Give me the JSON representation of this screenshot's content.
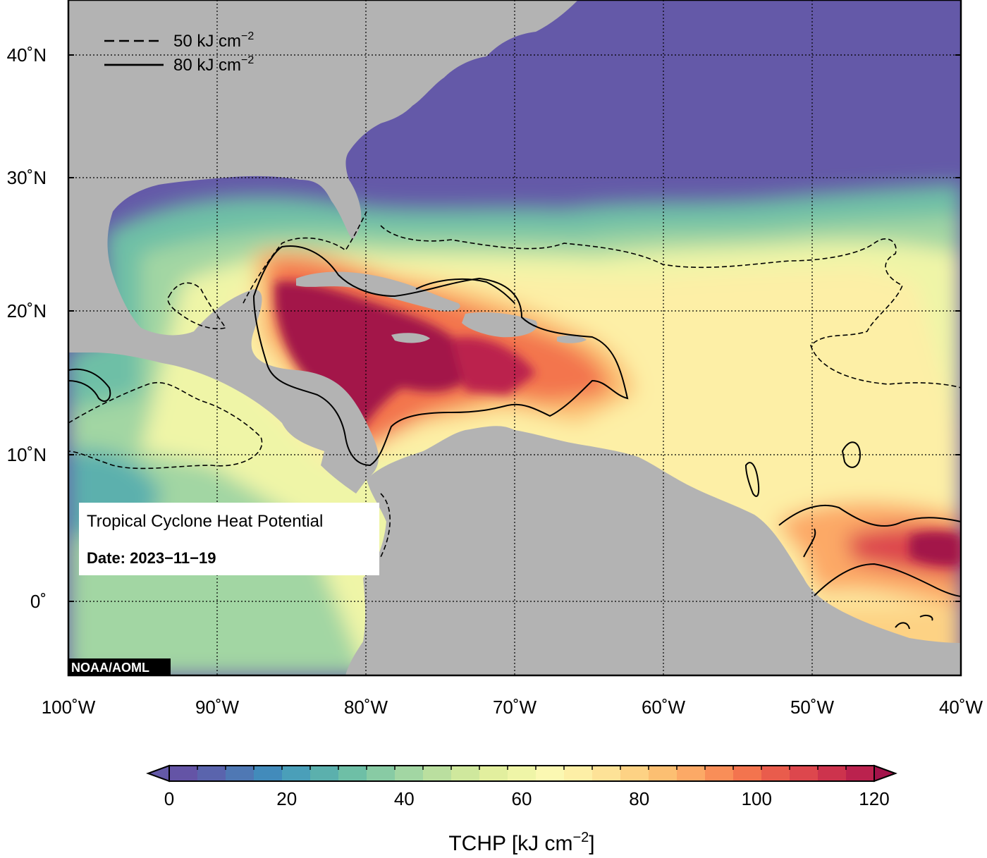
{
  "map": {
    "axes": {
      "lat_labels": [
        "40˚N",
        "30˚N",
        "20˚N",
        "10˚N",
        "0˚"
      ],
      "lon_labels": [
        "100˚W",
        "90˚W",
        "80˚W",
        "70˚W",
        "60˚W",
        "50˚W",
        "40˚W"
      ],
      "lon_range": [
        -100,
        -40
      ],
      "lat_range": [
        -5,
        45
      ],
      "grid": "dotted"
    },
    "legend": {
      "position": "top-left",
      "items": [
        {
          "style": "dashed",
          "prefix": "50 kJ cm",
          "exp": "−2"
        },
        {
          "style": "solid",
          "prefix": "80 kJ cm",
          "exp": "−2"
        }
      ]
    },
    "info_box": {
      "title": "Tropical Cyclone Heat Potential",
      "date_label": "Date: 2023−11−19"
    },
    "credit": "NOAA/AOML",
    "colors": {
      "land": "#b3b3b3",
      "ocean_low": "#6459a8",
      "ocean_high": "#a3134a",
      "contour": "#000000"
    }
  },
  "colorbar": {
    "ticks": [
      "0",
      "20",
      "40",
      "60",
      "80",
      "100",
      "120"
    ],
    "range": [
      0,
      120
    ],
    "label_prefix": "TCHP [kJ cm",
    "label_exp": "−2",
    "label_suffix": "]",
    "colors": [
      "#6459a8",
      "#6454a6",
      "#5a64ad",
      "#4f78b4",
      "#428bbb",
      "#4a9fb9",
      "#5bb0ad",
      "#6ebfa6",
      "#88cba4",
      "#a2d6a3",
      "#badf9f",
      "#cfe89d",
      "#e2ef9e",
      "#eff5a7",
      "#fbf8b2",
      "#fdefa6",
      "#fde297",
      "#fdd284",
      "#fcbf72",
      "#fca966",
      "#f98e58",
      "#f3744e",
      "#e95c4c",
      "#dd474d",
      "#cd334d",
      "#bb224e",
      "#a3134a"
    ]
  }
}
